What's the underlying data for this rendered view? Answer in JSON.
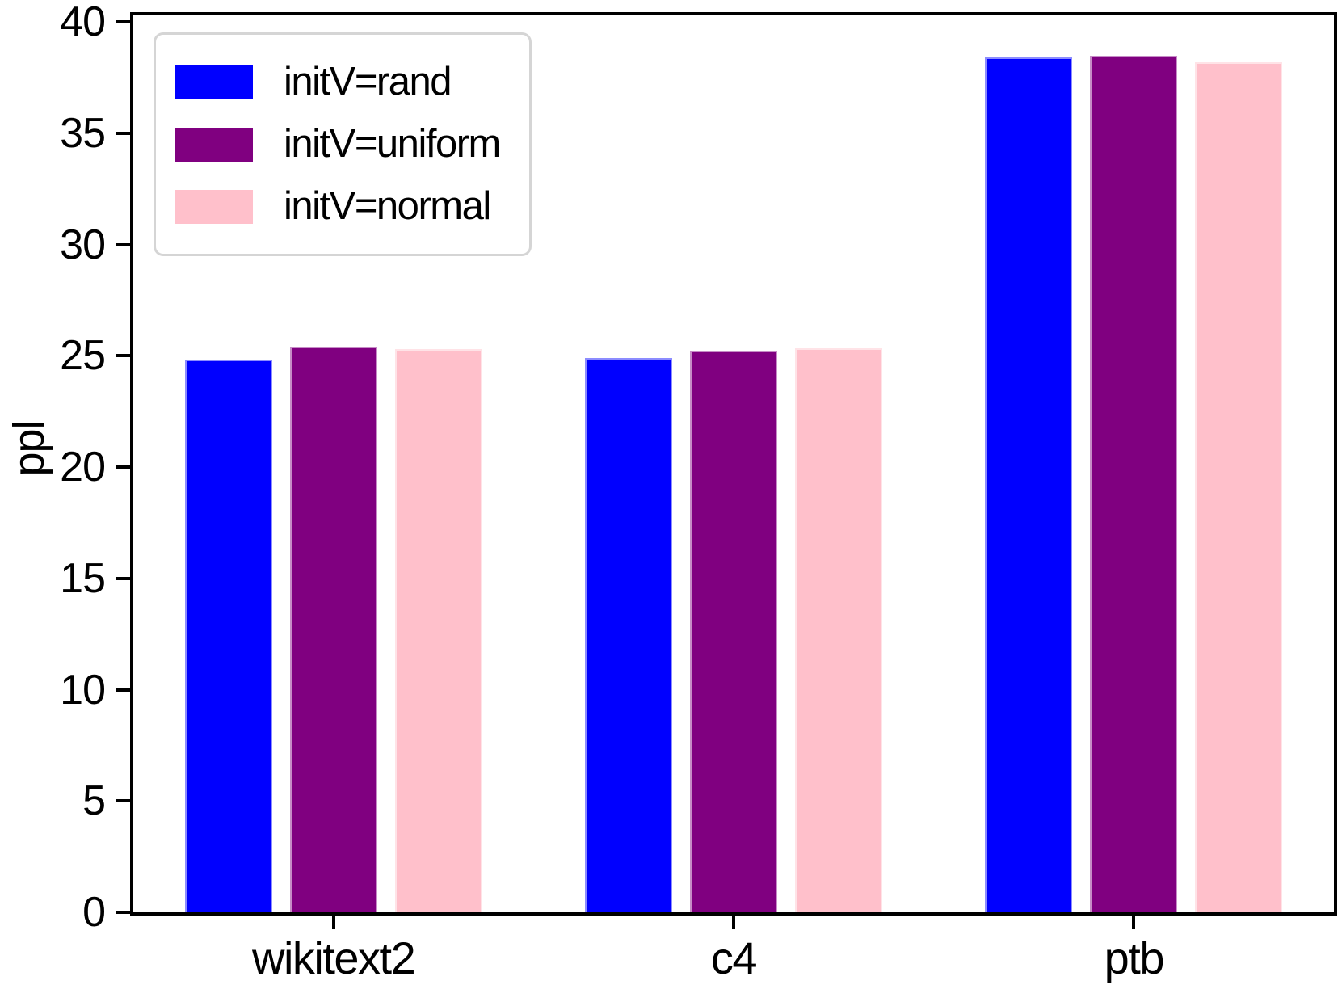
{
  "chart_data": {
    "type": "bar",
    "title": "",
    "xlabel": "",
    "ylabel": "ppl",
    "categories": [
      "wikitext2",
      "c4",
      "ptb"
    ],
    "series": [
      {
        "name": "initV=rand",
        "color": "#0000FF",
        "values": [
          24.85,
          24.9,
          38.4
        ]
      },
      {
        "name": "initV=uniform",
        "color": "#800080",
        "values": [
          25.4,
          25.25,
          38.5
        ]
      },
      {
        "name": "initV=normal",
        "color": "#FFC0CB",
        "values": [
          25.3,
          25.35,
          38.2
        ]
      }
    ],
    "yticks": [
      0,
      5,
      10,
      15,
      20,
      25,
      30,
      35,
      40
    ],
    "ylim": [
      0,
      40.3
    ],
    "grid": false,
    "legend_position": "upper left",
    "colors": {
      "spine": "#000000",
      "legend_border": "#d5d5d5",
      "bar_edge": "#e8e8f8"
    }
  }
}
